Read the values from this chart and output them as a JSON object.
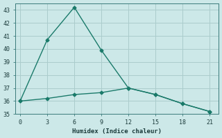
{
  "xlabel": "Humidex (Indice chaleur)",
  "bg_color": "#cce8e8",
  "grid_color": "#aacccc",
  "line_color": "#1a7a6a",
  "x_line1": [
    0,
    3,
    6,
    9,
    12,
    15,
    18,
    21
  ],
  "y_line1": [
    36.0,
    40.7,
    43.2,
    39.9,
    37.0,
    36.5,
    35.8,
    35.2
  ],
  "x_line2": [
    0,
    3,
    6,
    9,
    12,
    15,
    18,
    21
  ],
  "y_line2": [
    36.0,
    36.2,
    36.5,
    36.65,
    37.0,
    36.5,
    35.8,
    35.2
  ],
  "xlim": [
    -0.5,
    22
  ],
  "ylim": [
    35,
    43.5
  ],
  "xticks": [
    0,
    3,
    6,
    9,
    12,
    15,
    18,
    21
  ],
  "yticks": [
    35,
    36,
    37,
    38,
    39,
    40,
    41,
    42,
    43
  ],
  "marker": "D",
  "markersize": 2.5,
  "linewidth": 1.0
}
